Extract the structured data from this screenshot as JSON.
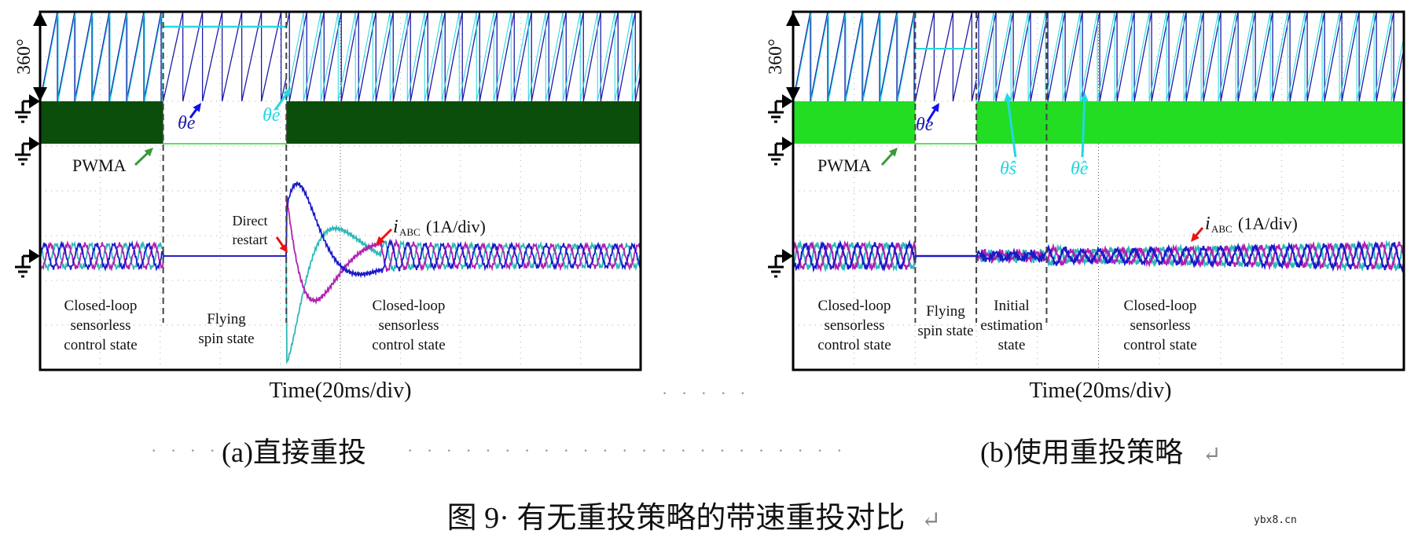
{
  "chart_data": [
    {
      "type": "line",
      "panel": "a",
      "xlabel": "Time(20ms/div)",
      "angle_scale_label": "360°",
      "current_label": "i_ABC (1A/div)",
      "x_unit": "ms",
      "xlim": [
        0,
        200
      ],
      "grid": true,
      "segment_boundaries_ms": [
        41,
        82
      ],
      "states": [
        {
          "lines": [
            "Closed-loop",
            "sensorless",
            "control state"
          ]
        },
        {
          "lines": [
            "Flying",
            "spin state"
          ]
        },
        {
          "lines": [
            "Closed-loop",
            "sensorless",
            "control state"
          ]
        }
      ],
      "annotations": {
        "theta_e": "θe",
        "theta_hat_e": "θ̂e",
        "pwm": "PWMA",
        "restart": [
          "Direct",
          "restart"
        ],
        "current_main": "i",
        "current_sub": "ABC",
        "current_scale": "(1A/div)"
      },
      "pwm_color": "#0b4d0b"
    },
    {
      "type": "line",
      "panel": "b",
      "xlabel": "Time(20ms/div)",
      "angle_scale_label": "360°",
      "current_label": "i_ABC (1A/div)",
      "x_unit": "ms",
      "xlim": [
        0,
        200
      ],
      "grid": true,
      "segment_boundaries_ms": [
        40,
        60,
        83
      ],
      "states": [
        {
          "lines": [
            "Closed-loop",
            "sensorless",
            "control state"
          ]
        },
        {
          "lines": [
            "Flying",
            "spin state"
          ]
        },
        {
          "lines": [
            "Initial",
            "estimation",
            "state"
          ]
        },
        {
          "lines": [
            "Closed-loop",
            "sensorless",
            "control state"
          ]
        }
      ],
      "annotations": {
        "theta_e": "θe",
        "theta_hat_s": "θ̂s",
        "theta_hat_e": "θ̂e",
        "pwm": "PWMA",
        "current_main": "i",
        "current_sub": "ABC",
        "current_scale": "(1A/div)"
      },
      "pwm_color": "#22dd22"
    }
  ],
  "colors": {
    "theta_e": "#1c1ca8",
    "theta_hat": "#22d8e0",
    "phase_a": "#2fb8b8",
    "phase_b": "#b020b0",
    "phase_c": "#1a1ac8",
    "arrow_red": "#ee1111",
    "arrow_green": "#3a9a3a"
  },
  "captions": {
    "sub_a": "(a)直接重投",
    "sub_b": "(b)使用重投策略",
    "figure": "图 9· 有无重投策略的带速重投对比",
    "separator_dots": "· · · · ·",
    "leading_dots": "· · · ·",
    "middle_dots": "· · · · · · · · · · · · · · · · · · · · · · ·",
    "return_mark": "↵"
  },
  "watermark": "ybx8.cn"
}
